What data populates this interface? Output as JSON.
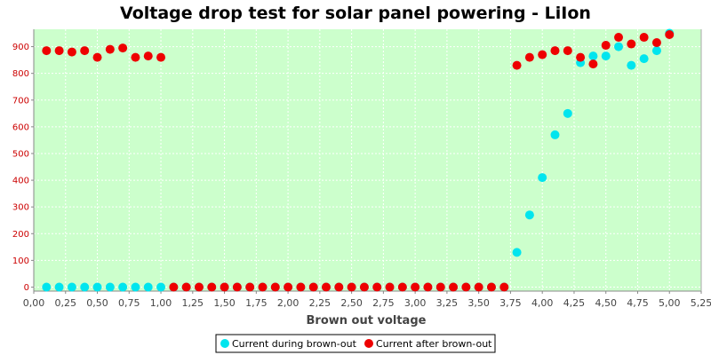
{
  "chart_data": {
    "type": "scatter",
    "title": "Voltage drop test for solar panel powering -  LiIon",
    "xlabel": "Brown out voltage",
    "ylabel": "",
    "xlim": [
      0.0,
      5.25
    ],
    "ylim": [
      -15,
      965
    ],
    "x_ticks": [
      "0,00",
      "0,25",
      "0,50",
      "0,75",
      "1,00",
      "1,25",
      "1,50",
      "1,75",
      "2,00",
      "2,25",
      "2,50",
      "2,75",
      "3,00",
      "3,25",
      "3,50",
      "3,75",
      "4,00",
      "4,25",
      "4,50",
      "4,75",
      "5,00",
      "5,25"
    ],
    "y_ticks": [
      "0",
      "100",
      "200",
      "300",
      "400",
      "500",
      "600",
      "700",
      "800",
      "900"
    ],
    "grid": true,
    "legend_position": "bottom-center",
    "colors": {
      "plot_background": "#ccffcc",
      "grid": "#ffffff",
      "axis": "#888888",
      "y_tick_labels": "#cc0000"
    },
    "series": [
      {
        "name": "Current during brown-out",
        "color": "#00e5ee",
        "points": [
          [
            0.1,
            0
          ],
          [
            0.2,
            0
          ],
          [
            0.3,
            0
          ],
          [
            0.4,
            0
          ],
          [
            0.5,
            0
          ],
          [
            0.6,
            0
          ],
          [
            0.7,
            0
          ],
          [
            0.8,
            0
          ],
          [
            0.9,
            0
          ],
          [
            1.0,
            0
          ],
          [
            1.1,
            0
          ],
          [
            1.2,
            0
          ],
          [
            1.3,
            0
          ],
          [
            1.4,
            0
          ],
          [
            1.5,
            0
          ],
          [
            1.6,
            0
          ],
          [
            1.7,
            0
          ],
          [
            1.8,
            0
          ],
          [
            1.9,
            0
          ],
          [
            2.0,
            0
          ],
          [
            2.1,
            0
          ],
          [
            2.2,
            0
          ],
          [
            2.3,
            0
          ],
          [
            2.4,
            0
          ],
          [
            2.5,
            0
          ],
          [
            2.6,
            0
          ],
          [
            2.7,
            0
          ],
          [
            2.8,
            0
          ],
          [
            2.9,
            0
          ],
          [
            3.0,
            0
          ],
          [
            3.1,
            0
          ],
          [
            3.2,
            0
          ],
          [
            3.3,
            0
          ],
          [
            3.4,
            0
          ],
          [
            3.5,
            0
          ],
          [
            3.6,
            0
          ],
          [
            3.7,
            0
          ],
          [
            3.8,
            130
          ],
          [
            3.9,
            270
          ],
          [
            4.0,
            410
          ],
          [
            4.1,
            570
          ],
          [
            4.2,
            650
          ],
          [
            4.3,
            840
          ],
          [
            4.4,
            865
          ],
          [
            4.5,
            865
          ],
          [
            4.6,
            900
          ],
          [
            4.7,
            830
          ],
          [
            4.8,
            855
          ],
          [
            4.9,
            885
          ],
          [
            5.0,
            950
          ]
        ]
      },
      {
        "name": "Current after brown-out",
        "color": "#ee0000",
        "points": [
          [
            0.1,
            885
          ],
          [
            0.2,
            885
          ],
          [
            0.3,
            880
          ],
          [
            0.4,
            885
          ],
          [
            0.5,
            860
          ],
          [
            0.6,
            890
          ],
          [
            0.7,
            895
          ],
          [
            0.8,
            860
          ],
          [
            0.9,
            865
          ],
          [
            1.0,
            860
          ],
          [
            1.1,
            0
          ],
          [
            1.2,
            0
          ],
          [
            1.3,
            0
          ],
          [
            1.4,
            0
          ],
          [
            1.5,
            0
          ],
          [
            1.6,
            0
          ],
          [
            1.7,
            0
          ],
          [
            1.8,
            0
          ],
          [
            1.9,
            0
          ],
          [
            2.0,
            0
          ],
          [
            2.1,
            0
          ],
          [
            2.2,
            0
          ],
          [
            2.3,
            0
          ],
          [
            2.4,
            0
          ],
          [
            2.5,
            0
          ],
          [
            2.6,
            0
          ],
          [
            2.7,
            0
          ],
          [
            2.8,
            0
          ],
          [
            2.9,
            0
          ],
          [
            3.0,
            0
          ],
          [
            3.1,
            0
          ],
          [
            3.2,
            0
          ],
          [
            3.3,
            0
          ],
          [
            3.4,
            0
          ],
          [
            3.5,
            0
          ],
          [
            3.6,
            0
          ],
          [
            3.7,
            0
          ],
          [
            3.8,
            830
          ],
          [
            3.9,
            860
          ],
          [
            4.0,
            870
          ],
          [
            4.1,
            885
          ],
          [
            4.2,
            885
          ],
          [
            4.3,
            860
          ],
          [
            4.4,
            835
          ],
          [
            4.5,
            905
          ],
          [
            4.6,
            935
          ],
          [
            4.7,
            910
          ],
          [
            4.8,
            935
          ],
          [
            4.9,
            915
          ],
          [
            5.0,
            945
          ]
        ]
      }
    ]
  }
}
